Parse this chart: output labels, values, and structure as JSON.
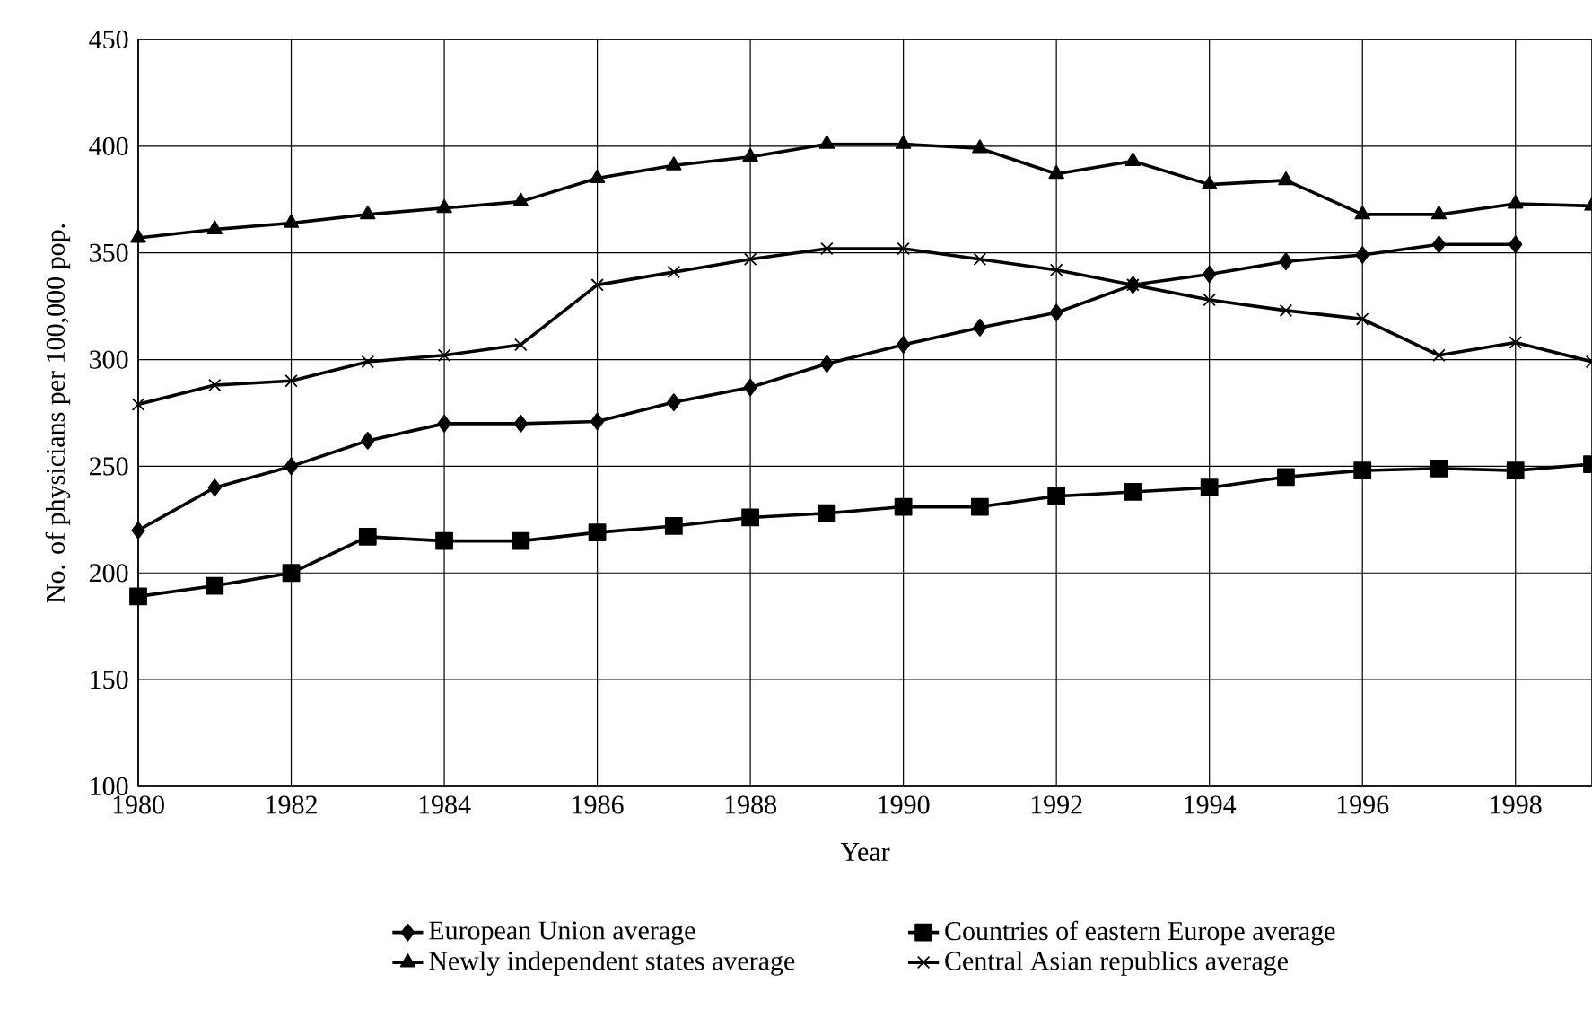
{
  "chart_data": {
    "type": "line",
    "xlabel": "Year",
    "ylabel": "No. of physicians per 100,000 pop.",
    "x": [
      1980,
      1981,
      1982,
      1983,
      1984,
      1985,
      1986,
      1987,
      1988,
      1989,
      1990,
      1991,
      1992,
      1993,
      1994,
      1995,
      1996,
      1997,
      1998,
      1999
    ],
    "series": [
      {
        "name": "European Union average",
        "color": "#000000",
        "marker": "diamond",
        "values": [
          220,
          240,
          250,
          262,
          270,
          270,
          271,
          280,
          287,
          298,
          307,
          315,
          322,
          335,
          340,
          346,
          349,
          354,
          354,
          null
        ]
      },
      {
        "name": "Countries of eastern Europe average",
        "color": "#000000",
        "marker": "square",
        "values": [
          189,
          194,
          200,
          217,
          215,
          215,
          219,
          222,
          226,
          228,
          231,
          231,
          236,
          238,
          240,
          245,
          248,
          249,
          248,
          251
        ]
      },
      {
        "name": "Newly independent states average",
        "color": "#000000",
        "marker": "triangle",
        "values": [
          357,
          361,
          364,
          368,
          371,
          374,
          385,
          391,
          395,
          401,
          401,
          399,
          387,
          393,
          382,
          384,
          368,
          368,
          373,
          372
        ]
      },
      {
        "name": "Central Asian republics average",
        "color": "#000000",
        "marker": "cross",
        "values": [
          279,
          288,
          290,
          299,
          302,
          307,
          335,
          341,
          347,
          352,
          352,
          347,
          342,
          335,
          328,
          323,
          319,
          302,
          308,
          299
        ]
      }
    ],
    "xlim": [
      1980,
      1999
    ],
    "ylim": [
      100,
      450
    ],
    "xticks": [
      1980,
      1982,
      1984,
      1986,
      1988,
      1990,
      1992,
      1994,
      1996,
      1998
    ],
    "yticks": [
      100,
      150,
      200,
      250,
      300,
      350,
      400,
      450
    ],
    "grid": true,
    "legend": "bottom",
    "line_style": "solid"
  }
}
